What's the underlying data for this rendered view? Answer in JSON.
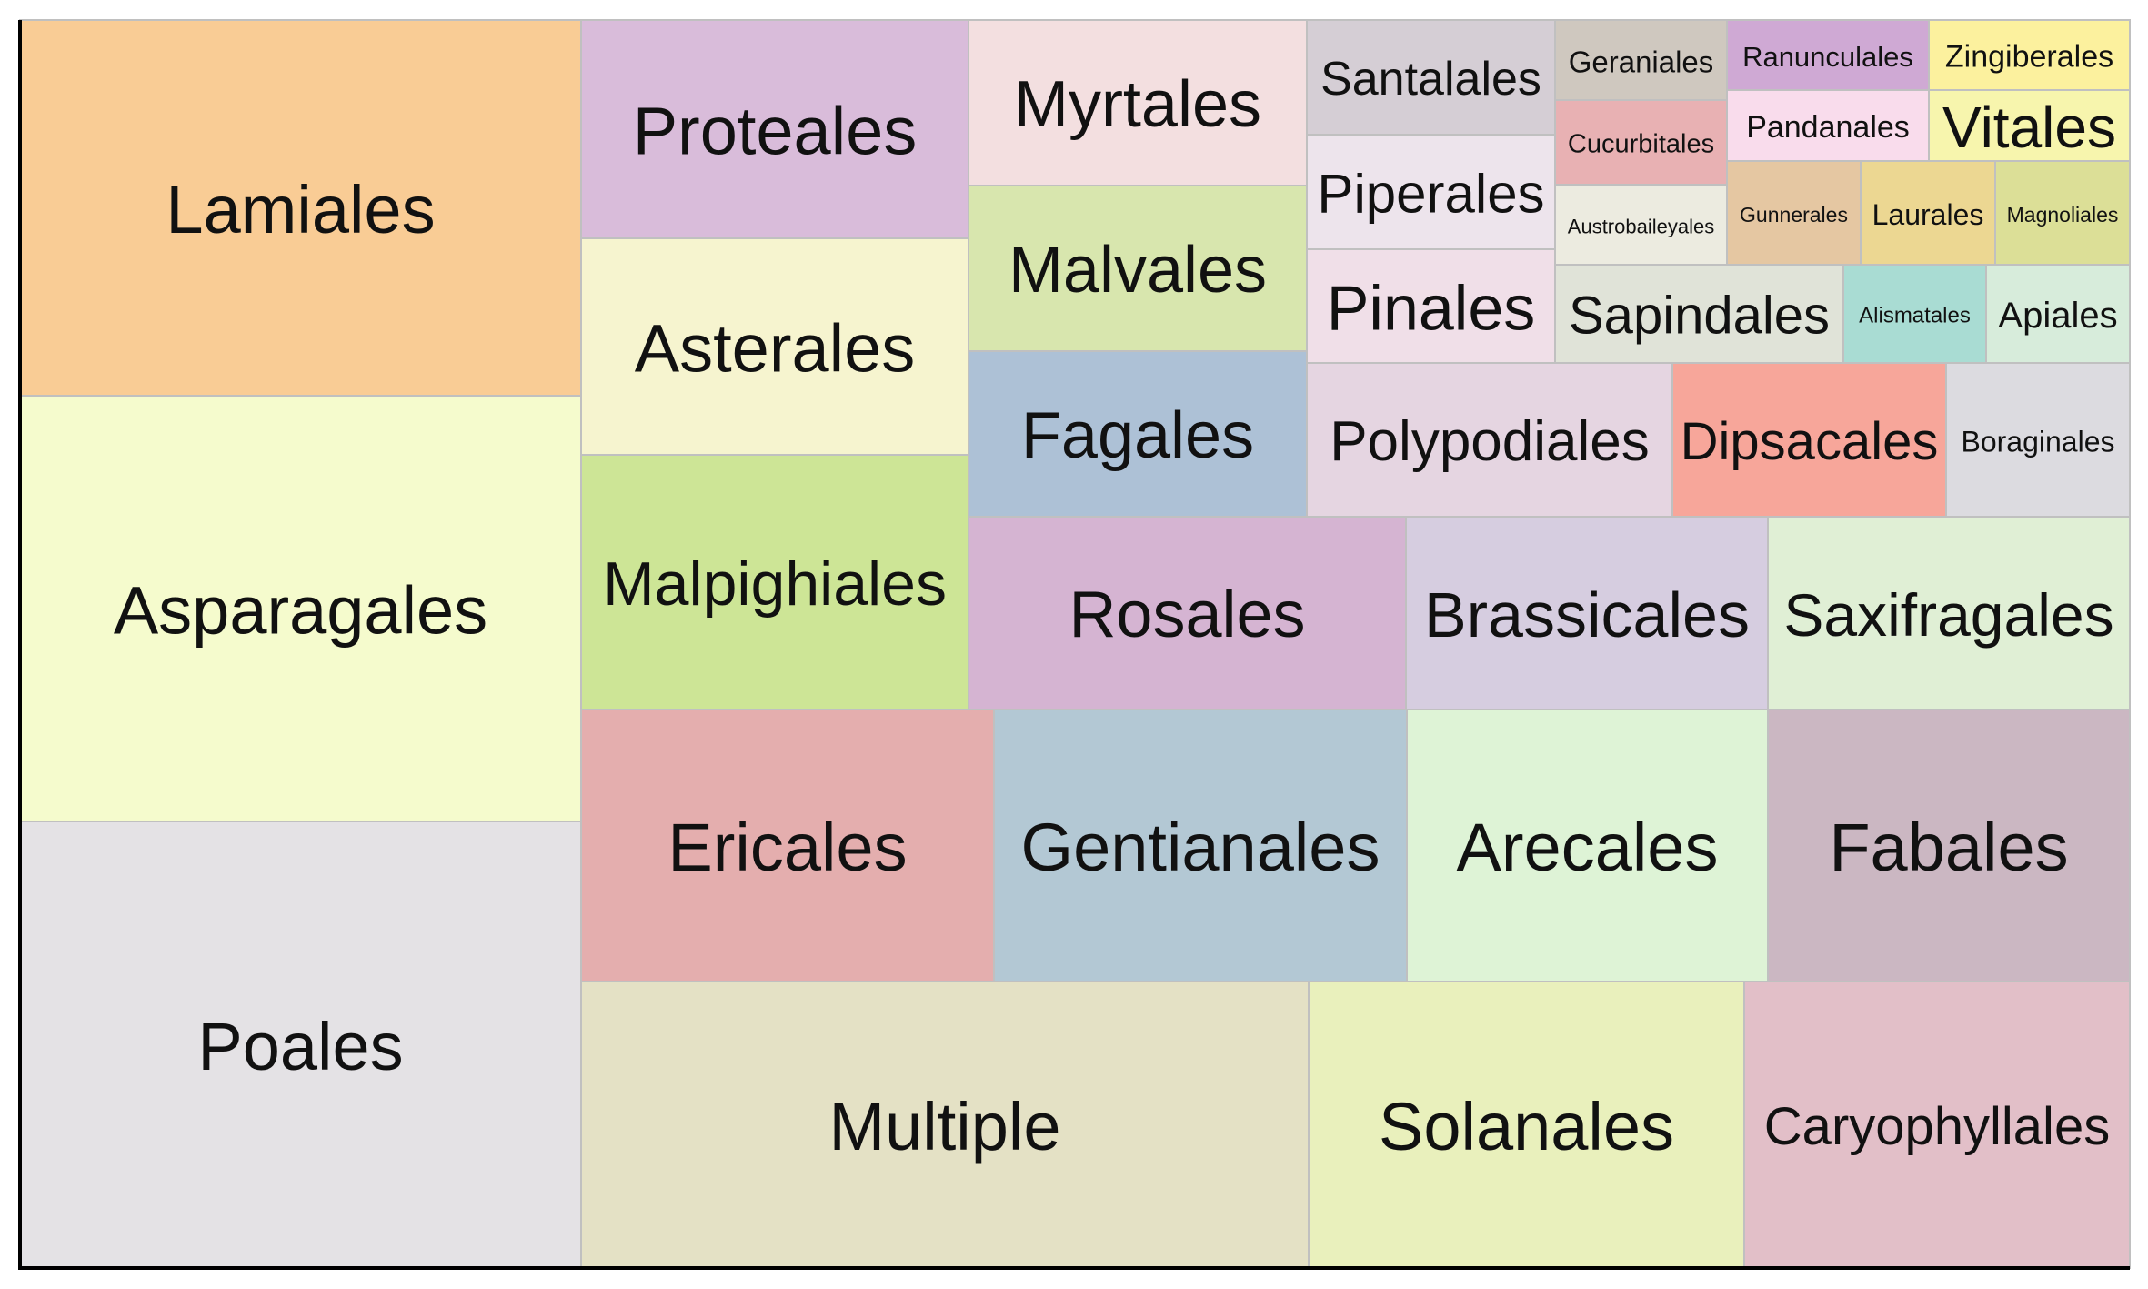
{
  "chart_data": {
    "type": "treemap",
    "title": "",
    "xlabel": "",
    "ylabel": "",
    "grid": false,
    "legend": "none",
    "items": [
      {
        "label": "Lamiales",
        "color": "#f9cc95"
      },
      {
        "label": "Asparagales",
        "color": "#f5fbcd"
      },
      {
        "label": "Poales",
        "color": "#e4e2e5"
      },
      {
        "label": "Proteales",
        "color": "#d9bcda"
      },
      {
        "label": "Asterales",
        "color": "#f6f4cf"
      },
      {
        "label": "Malpighiales",
        "color": "#cde596"
      },
      {
        "label": "Myrtales",
        "color": "#f3dfe0"
      },
      {
        "label": "Malvales",
        "color": "#d8e6ae"
      },
      {
        "label": "Fagales",
        "color": "#adc1d6"
      },
      {
        "label": "Santalales",
        "color": "#d5ced5"
      },
      {
        "label": "Piperales",
        "color": "#ede4ec"
      },
      {
        "label": "Pinales",
        "color": "#f0dfe8"
      },
      {
        "label": "Geraniales",
        "color": "#cfc8bf"
      },
      {
        "label": "Cucurbitales",
        "color": "#e8b1b3"
      },
      {
        "label": "Austrobaileyales",
        "color": "#ecebe0"
      },
      {
        "label": "Ranunculales",
        "color": "#cfa9d4"
      },
      {
        "label": "Zingiberales",
        "color": "#fcf19e"
      },
      {
        "label": "Pandanales",
        "color": "#f9dcec"
      },
      {
        "label": "Vitales",
        "color": "#f7f5ad"
      },
      {
        "label": "Gunnerales",
        "color": "#e5c7a2"
      },
      {
        "label": "Laurales",
        "color": "#ecd792"
      },
      {
        "label": "Magnoliales",
        "color": "#dcdf97"
      },
      {
        "label": "Sapindales",
        "color": "#e0e3d8"
      },
      {
        "label": "Alismatales",
        "color": "#a9dcd3"
      },
      {
        "label": "Apiales",
        "color": "#d7ecdb"
      },
      {
        "label": "Polypodiales",
        "color": "#e5d5e1"
      },
      {
        "label": "Dipsacales",
        "color": "#f7a69a"
      },
      {
        "label": "Boraginales",
        "color": "#dcdbe0"
      },
      {
        "label": "Rosales",
        "color": "#d5b4d2"
      },
      {
        "label": "Brassicales",
        "color": "#d6cde0"
      },
      {
        "label": "Saxifragales",
        "color": "#e0efd5"
      },
      {
        "label": "Ericales",
        "color": "#e4aeae"
      },
      {
        "label": "Gentianales",
        "color": "#b3c8d4"
      },
      {
        "label": "Arecales",
        "color": "#def3d6"
      },
      {
        "label": "Fabales",
        "color": "#cbb7c2"
      },
      {
        "label": "Multiple",
        "color": "#e4e1c5"
      },
      {
        "label": "Solanales",
        "color": "#e9f0bc"
      },
      {
        "label": "Caryophyllales",
        "color": "#e2bfc8"
      }
    ]
  }
}
